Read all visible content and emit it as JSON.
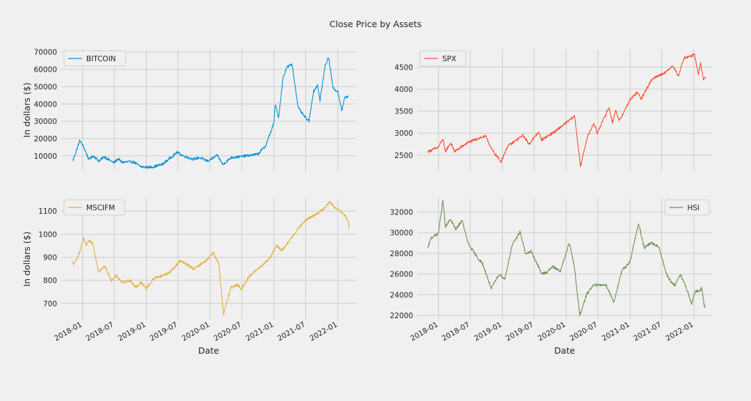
{
  "title": "Close Price by Assets",
  "chart_data": [
    {
      "type": "line",
      "series": [
        {
          "name": "BITCOIN",
          "color": "#008fd5",
          "x": [
            "2017-11-06",
            "2017-12-17",
            "2018-01-08",
            "2018-02-06",
            "2018-03-05",
            "2018-04-06",
            "2018-05-05",
            "2018-06-29",
            "2018-07-24",
            "2018-08-14",
            "2018-09-20",
            "2018-10-20",
            "2018-11-25",
            "2018-12-15",
            "2019-02-01",
            "2019-04-02",
            "2019-06-26",
            "2019-08-01",
            "2019-09-26",
            "2019-11-01",
            "2019-12-18",
            "2020-02-13",
            "2020-03-13",
            "2020-05-01",
            "2020-06-15",
            "2020-07-25",
            "2020-10-01",
            "2020-11-15",
            "2020-12-31",
            "2021-01-08",
            "2021-01-27",
            "2021-02-21",
            "2021-03-13",
            "2021-04-14",
            "2021-05-19",
            "2021-06-22",
            "2021-07-20",
            "2021-08-14",
            "2021-09-07",
            "2021-09-21",
            "2021-10-20",
            "2021-11-09",
            "2021-12-05",
            "2022-01-01",
            "2022-01-24",
            "2022-02-10",
            "2022-03-01"
          ],
          "y": [
            7000,
            19000,
            15000,
            8000,
            10000,
            7000,
            9500,
            6000,
            8300,
            6300,
            6500,
            6500,
            4000,
            3500,
            3500,
            5000,
            12000,
            10000,
            8000,
            9000,
            7000,
            10300,
            5000,
            9000,
            9500,
            10000,
            11000,
            16000,
            29000,
            40000,
            32000,
            55000,
            61000,
            63000,
            38000,
            33000,
            30000,
            47000,
            51000,
            42000,
            62000,
            67000,
            49000,
            47000,
            36000,
            44000,
            44000
          ]
        }
      ],
      "xlabel": "",
      "ylabel": "In dollars ($)",
      "xlim": [
        "2017-09-01",
        "2022-04-15"
      ],
      "ylim": [
        1500,
        71500
      ],
      "yticks": [
        10000,
        20000,
        30000,
        40000,
        50000,
        60000,
        70000
      ],
      "xticks": [
        "2018-01",
        "2018-07",
        "2019-01",
        "2019-07",
        "2020-01",
        "2020-07",
        "2021-01",
        "2021-07",
        "2022-01"
      ],
      "show_xticklabels": false,
      "legend": "top-left",
      "grid": true
    },
    {
      "type": "line",
      "series": [
        {
          "name": "SPX",
          "color": "#fc4f30",
          "x": [
            "2017-11-01",
            "2017-12-31",
            "2018-01-26",
            "2018-02-08",
            "2018-03-12",
            "2018-04-02",
            "2018-06-15",
            "2018-08-29",
            "2018-10-01",
            "2018-10-29",
            "2018-12-24",
            "2019-01-31",
            "2019-04-30",
            "2019-06-03",
            "2019-07-26",
            "2019-08-14",
            "2019-10-31",
            "2019-12-31",
            "2020-02-19",
            "2020-03-23",
            "2020-04-30",
            "2020-06-08",
            "2020-06-26",
            "2020-09-02",
            "2020-09-23",
            "2020-10-12",
            "2020-10-30",
            "2020-12-31",
            "2021-02-12",
            "2021-03-04",
            "2021-05-07",
            "2021-07-30",
            "2021-09-02",
            "2021-10-04",
            "2021-11-05",
            "2021-12-31",
            "2022-01-03",
            "2022-01-27",
            "2022-02-09",
            "2022-02-24",
            "2022-03-10"
          ],
          "y": [
            2580,
            2680,
            2870,
            2580,
            2780,
            2580,
            2780,
            2900,
            2920,
            2650,
            2350,
            2700,
            2950,
            2750,
            3020,
            2850,
            3040,
            3230,
            3390,
            2240,
            2900,
            3230,
            3000,
            3580,
            3240,
            3530,
            3270,
            3750,
            3930,
            3770,
            4230,
            4400,
            4540,
            4300,
            4700,
            4770,
            4800,
            4330,
            4590,
            4230,
            4260
          ]
        }
      ],
      "xlabel": "",
      "ylabel": "",
      "xlim": [
        "2017-09-01",
        "2022-04-15"
      ],
      "ylim": [
        2150,
        4900
      ],
      "yticks": [
        2500,
        3000,
        3500,
        4000,
        4500
      ],
      "xticks": [
        "2018-01",
        "2018-07",
        "2019-01",
        "2019-07",
        "2020-01",
        "2020-07",
        "2021-01",
        "2021-07",
        "2022-01"
      ],
      "show_xticklabels": false,
      "legend": "top-left",
      "grid": true
    },
    {
      "type": "line",
      "series": [
        {
          "name": "MSCIFM",
          "color": "#e5ae38",
          "x": [
            "2017-11-01",
            "2017-11-15",
            "2017-12-15",
            "2018-01-08",
            "2018-01-20",
            "2018-02-08",
            "2018-03-01",
            "2018-04-02",
            "2018-05-10",
            "2018-06-15",
            "2018-07-15",
            "2018-08-15",
            "2018-10-01",
            "2018-11-01",
            "2018-12-01",
            "2019-01-01",
            "2019-02-15",
            "2019-04-01",
            "2019-05-15",
            "2019-07-15",
            "2019-08-15",
            "2019-10-01",
            "2019-12-01",
            "2020-01-20",
            "2020-02-20",
            "2020-03-18",
            "2020-04-02",
            "2020-05-01",
            "2020-06-08",
            "2020-06-25",
            "2020-08-15",
            "2020-10-01",
            "2020-12-01",
            "2021-01-15",
            "2021-02-15",
            "2021-03-10",
            "2021-04-15",
            "2021-05-15",
            "2021-06-30",
            "2021-08-15",
            "2021-10-15",
            "2021-11-15",
            "2021-12-20",
            "2022-01-15",
            "2022-02-10",
            "2022-02-28",
            "2022-03-08"
          ],
          "y": [
            880,
            870,
            920,
            985,
            950,
            970,
            960,
            840,
            860,
            800,
            820,
            790,
            800,
            770,
            790,
            765,
            810,
            820,
            835,
            885,
            870,
            850,
            880,
            920,
            870,
            645,
            700,
            770,
            780,
            760,
            820,
            850,
            890,
            950,
            930,
            950,
            990,
            1020,
            1060,
            1080,
            1110,
            1140,
            1110,
            1100,
            1080,
            1060,
            1020
          ]
        }
      ],
      "xlabel": "Date",
      "ylabel": "In dollars ($)",
      "xlim": [
        "2017-09-01",
        "2022-04-15"
      ],
      "ylim": [
        630,
        1155
      ],
      "yticks": [
        700,
        800,
        900,
        1000,
        1100
      ],
      "xticks": [
        "2018-01",
        "2018-07",
        "2019-01",
        "2019-07",
        "2020-01",
        "2020-07",
        "2021-01",
        "2021-07",
        "2022-01"
      ],
      "show_xticklabels": true,
      "legend": "top-left",
      "grid": true
    },
    {
      "type": "line",
      "series": [
        {
          "name": "HSI",
          "color": "#6d904f",
          "x": [
            "2017-11-01",
            "2017-11-20",
            "2017-12-31",
            "2018-01-26",
            "2018-02-09",
            "2018-03-10",
            "2018-04-10",
            "2018-05-15",
            "2018-06-20",
            "2018-08-15",
            "2018-09-10",
            "2018-10-30",
            "2018-12-15",
            "2019-01-15",
            "2019-02-25",
            "2019-04-12",
            "2019-05-15",
            "2019-06-15",
            "2019-08-15",
            "2019-09-15",
            "2019-10-15",
            "2019-11-30",
            "2020-01-20",
            "2020-02-15",
            "2020-03-19",
            "2020-04-30",
            "2020-06-08",
            "2020-07-15",
            "2020-08-15",
            "2020-09-30",
            "2020-11-15",
            "2021-01-01",
            "2021-02-18",
            "2021-03-24",
            "2021-04-30",
            "2021-06-15",
            "2021-07-27",
            "2021-08-20",
            "2021-09-15",
            "2021-10-15",
            "2021-11-15",
            "2021-12-20",
            "2022-01-10",
            "2022-02-01",
            "2022-02-15",
            "2022-03-01",
            "2022-03-08"
          ],
          "y": [
            28500,
            29500,
            29900,
            33100,
            30500,
            31300,
            30300,
            31200,
            28900,
            27500,
            27000,
            24600,
            26000,
            25500,
            28700,
            30100,
            27900,
            28200,
            26000,
            26200,
            26700,
            26300,
            29000,
            27000,
            22000,
            24100,
            25000,
            24900,
            25000,
            23300,
            26300,
            27200,
            30900,
            28500,
            29000,
            28600,
            26000,
            25300,
            24900,
            26000,
            24800,
            23100,
            24400,
            24300,
            24700,
            23000,
            22700
          ]
        }
      ],
      "xlabel": "Date",
      "ylabel": "",
      "xlim": [
        "2017-09-01",
        "2022-04-15"
      ],
      "ylim": [
        21600,
        33300
      ],
      "yticks": [
        22000,
        24000,
        26000,
        28000,
        30000,
        32000
      ],
      "xticks": [
        "2018-01",
        "2018-07",
        "2019-01",
        "2019-07",
        "2020-01",
        "2020-07",
        "2021-01",
        "2021-07",
        "2022-01"
      ],
      "show_xticklabels": true,
      "legend": "top-right",
      "grid": true
    }
  ]
}
